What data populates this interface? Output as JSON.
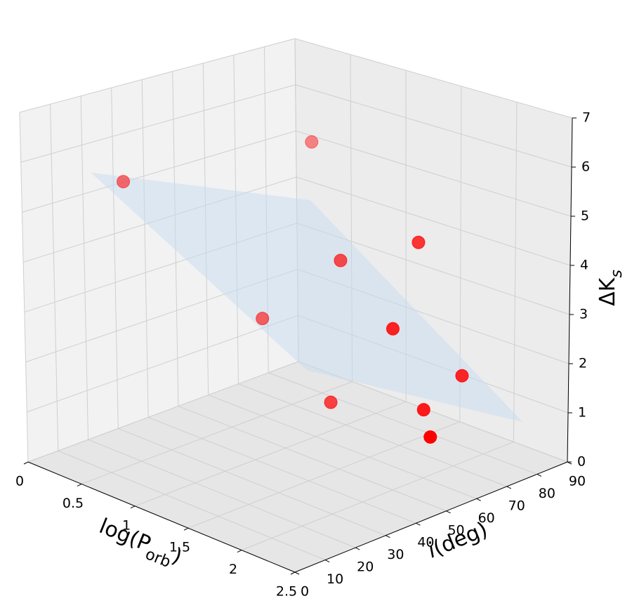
{
  "chart_data": {
    "type": "scatter3d",
    "xlabel": [
      "log(P",
      "orb",
      ")"
    ],
    "ylabel": [
      "i",
      "(deg)"
    ],
    "zlabel": [
      "ΔK",
      "s"
    ],
    "x": [
      0.3,
      1.0,
      2.0,
      1.5,
      1.0,
      2.0,
      2.3,
      1.5,
      2.2,
      2.4
    ],
    "y": [
      22.6,
      59.2,
      58.2,
      50.6,
      42.7,
      49.9,
      62.0,
      47.3,
      53.0,
      48.1
    ],
    "z": [
      5.4,
      6.02,
      4.68,
      4.12,
      2.76,
      3.14,
      2.2,
      1.38,
      1.65,
      1.38
    ],
    "color": "#ff0000",
    "depthshade": true,
    "surface": {
      "x": [
        0.5,
        2.5
      ],
      "y": [
        5,
        75
      ],
      "z": [
        [
          6.0,
          0.6
        ],
        [
          6.56,
          1.16
        ]
      ],
      "color": "#c6dbef"
    },
    "xlim": [
      0,
      2.5
    ],
    "xticks": [
      0,
      0.5,
      1,
      1.5,
      2,
      2.5
    ],
    "ylim": [
      0,
      90
    ],
    "yticks": [
      0,
      10,
      20,
      30,
      40,
      50,
      60,
      70,
      80,
      90
    ],
    "zlim": [
      0,
      7
    ],
    "zticks": [
      0,
      1,
      2,
      3,
      4,
      5,
      6,
      7
    ],
    "grid": true
  }
}
